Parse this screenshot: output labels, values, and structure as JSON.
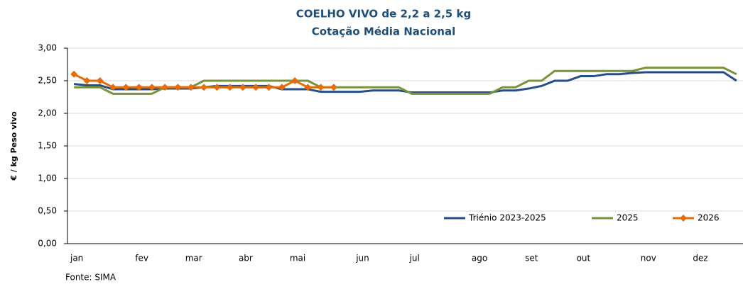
{
  "chart_data": {
    "type": "line",
    "title": "COELHO VIVO de 2,2 a 2,5 kg",
    "subtitle": "Cotação Média Nacional",
    "y_label": "€ / kg Peso vivo",
    "source": "Fonte: SIMA",
    "categories": [
      "jan",
      null,
      null,
      null,
      null,
      "fev",
      null,
      null,
      null,
      "mar",
      null,
      null,
      null,
      "abr",
      null,
      null,
      null,
      "mai",
      null,
      null,
      null,
      null,
      "jun",
      null,
      null,
      null,
      "jul",
      null,
      null,
      null,
      null,
      "ago",
      null,
      null,
      null,
      "set",
      null,
      null,
      null,
      "out",
      null,
      null,
      null,
      null,
      "nov",
      null,
      null,
      null,
      "dez",
      null,
      null,
      null
    ],
    "ylim": [
      0,
      3
    ],
    "yticks": [
      {
        "value": 0,
        "label": "0,00"
      },
      {
        "value": 0.5,
        "label": "0,50"
      },
      {
        "value": 1,
        "label": "1,00"
      },
      {
        "value": 1.5,
        "label": "1,50"
      },
      {
        "value": 2,
        "label": "2,00"
      },
      {
        "value": 2.5,
        "label": "2,50"
      },
      {
        "value": 3,
        "label": "3,00"
      }
    ],
    "grid": true,
    "legend": "bottom-right",
    "series": [
      {
        "name": "Triénio 2023-2025",
        "color": "#254e85",
        "marker": false,
        "values": [
          2.45,
          2.43,
          2.43,
          2.37,
          2.37,
          2.37,
          2.37,
          2.38,
          2.38,
          2.38,
          2.4,
          2.42,
          2.42,
          2.42,
          2.42,
          2.42,
          2.37,
          2.37,
          2.37,
          2.33,
          2.33,
          2.33,
          2.33,
          2.35,
          2.35,
          2.35,
          2.32,
          2.32,
          2.32,
          2.32,
          2.32,
          2.32,
          2.32,
          2.35,
          2.35,
          2.38,
          2.42,
          2.5,
          2.5,
          2.57,
          2.57,
          2.6,
          2.6,
          2.62,
          2.63,
          2.63,
          2.63,
          2.63,
          2.63,
          2.63,
          2.63,
          2.5
        ]
      },
      {
        "name": "2025",
        "color": "#77933c",
        "marker": false,
        "values": [
          2.4,
          2.4,
          2.4,
          2.3,
          2.3,
          2.3,
          2.3,
          2.4,
          2.4,
          2.4,
          2.5,
          2.5,
          2.5,
          2.5,
          2.5,
          2.5,
          2.5,
          2.5,
          2.5,
          2.4,
          2.4,
          2.4,
          2.4,
          2.4,
          2.4,
          2.4,
          2.3,
          2.3,
          2.3,
          2.3,
          2.3,
          2.3,
          2.3,
          2.4,
          2.4,
          2.5,
          2.5,
          2.65,
          2.65,
          2.65,
          2.65,
          2.65,
          2.65,
          2.65,
          2.7,
          2.7,
          2.7,
          2.7,
          2.7,
          2.7,
          2.7,
          2.6
        ]
      },
      {
        "name": "2026",
        "color": "#e46c0a",
        "marker": true,
        "values": [
          2.6,
          2.5,
          2.5,
          2.4,
          2.4,
          2.4,
          2.4,
          2.4,
          2.4,
          2.4,
          2.4,
          2.4,
          2.4,
          2.4,
          2.4,
          2.4,
          2.4,
          2.5,
          2.4,
          2.4,
          2.4,
          null,
          null,
          null,
          null,
          null,
          null,
          null,
          null,
          null,
          null,
          null,
          null,
          null,
          null,
          null,
          null,
          null,
          null,
          null,
          null,
          null,
          null,
          null,
          null,
          null,
          null,
          null,
          null,
          null,
          null,
          null
        ]
      }
    ]
  }
}
